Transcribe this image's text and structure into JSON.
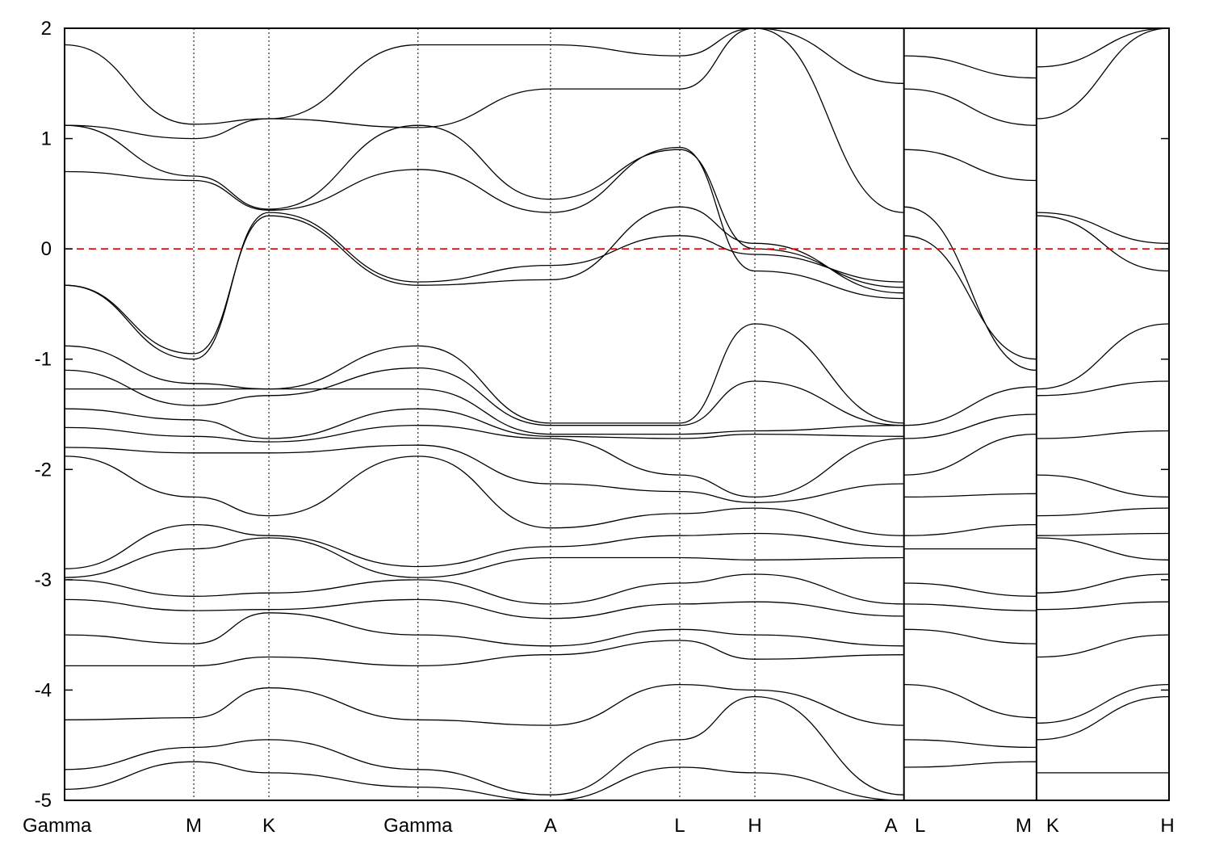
{
  "chart_data": {
    "type": "line",
    "title": "",
    "xlabel": "",
    "ylabel": "",
    "ylim": [
      -5,
      2
    ],
    "yticks": [
      -5,
      -4,
      -3,
      -2,
      -1,
      0,
      1,
      2
    ],
    "fermi_level": 0,
    "fermi_color": "#dd0000",
    "grid": false,
    "legend": "none",
    "xlim": [
      0,
      10
    ],
    "kpoints": [
      {
        "label": "Gamma",
        "x": 0.0
      },
      {
        "label": "M",
        "x": 1.17
      },
      {
        "label": "K",
        "x": 1.85
      },
      {
        "label": "Gamma",
        "x": 3.2
      },
      {
        "label": "A",
        "x": 4.4
      },
      {
        "label": "L",
        "x": 5.57
      },
      {
        "label": "H",
        "x": 6.25
      },
      {
        "label": "A",
        "x": 7.6
      },
      {
        "label": "L",
        "x": 7.6
      },
      {
        "label": "M",
        "x": 8.8
      },
      {
        "label": "K",
        "x": 8.8
      },
      {
        "label": "H",
        "x": 10.0
      }
    ],
    "segment_breaks": [
      7.6,
      8.8
    ],
    "series": [
      {
        "segment": "Gamma-M-K-Gamma-A-L-H-A",
        "x": [
          0,
          1.17,
          1.85,
          3.2,
          4.4,
          5.57,
          6.25,
          7.6
        ],
        "y": [
          -0.33,
          -1.0,
          0.33,
          -0.3,
          -0.15,
          0.12,
          -0.05,
          -0.3
        ]
      },
      {
        "segment": "Gamma-M-K-Gamma-A-L-H-A",
        "x": [
          0,
          1.17,
          1.85,
          3.2,
          4.4,
          5.57,
          6.25,
          7.6
        ],
        "y": [
          -0.33,
          -0.95,
          0.3,
          -0.33,
          -0.28,
          0.38,
          0.05,
          -0.4
        ]
      },
      {
        "segment": "Gamma-M-K-Gamma-A-L-H-A",
        "x": [
          0,
          1.17,
          1.85,
          3.2,
          4.4,
          5.57,
          6.25,
          7.6
        ],
        "y": [
          0.7,
          0.62,
          0.35,
          0.72,
          0.33,
          0.92,
          -0.2,
          -0.45
        ]
      },
      {
        "segment": "Gamma-M-K-Gamma-A-L-H-A",
        "x": [
          0,
          1.17,
          1.85,
          3.2,
          4.4,
          5.57,
          6.25,
          7.6
        ],
        "y": [
          1.12,
          0.66,
          0.36,
          1.12,
          0.45,
          0.9,
          0.0,
          -0.35
        ]
      },
      {
        "segment": "Gamma-M-K-Gamma-A-L-H-A",
        "x": [
          0,
          1.17,
          1.85,
          3.2,
          4.4,
          5.57,
          6.25,
          7.6
        ],
        "y": [
          1.12,
          1.0,
          1.18,
          1.1,
          1.45,
          1.45,
          2.0,
          0.33
        ]
      },
      {
        "segment": "Gamma-M-K-Gamma-A-L-H-A",
        "x": [
          0,
          1.17,
          1.85,
          3.2,
          4.4,
          5.57,
          6.25,
          7.6
        ],
        "y": [
          1.85,
          1.13,
          1.18,
          1.85,
          1.85,
          1.75,
          2.0,
          1.5
        ]
      },
      {
        "segment": "Gamma-M-K-Gamma-A-L-H-A",
        "x": [
          0,
          1.17,
          1.85,
          3.2,
          4.4,
          5.57,
          6.25,
          7.6
        ],
        "y": [
          -0.88,
          -1.22,
          -1.27,
          -0.88,
          -1.58,
          -1.58,
          -0.68,
          -1.58
        ]
      },
      {
        "segment": "Gamma-M-K-Gamma-A-L-H-A",
        "x": [
          0,
          1.17,
          1.85,
          3.2,
          4.4,
          5.57,
          6.25,
          7.6
        ],
        "y": [
          -1.1,
          -1.42,
          -1.33,
          -1.08,
          -1.6,
          -1.6,
          -1.2,
          -1.6
        ]
      },
      {
        "segment": "Gamma-M-K-Gamma-A-L-H-A",
        "x": [
          0,
          1.17,
          1.85,
          3.2,
          4.4,
          5.57,
          6.25,
          7.6
        ],
        "y": [
          -1.27,
          -1.27,
          -1.27,
          -1.27,
          -1.68,
          -1.68,
          -1.65,
          -1.6
        ]
      },
      {
        "segment": "Gamma-M-K-Gamma-A-L-H-A",
        "x": [
          0,
          1.17,
          1.85,
          3.2,
          4.4,
          5.57,
          6.25,
          7.6
        ],
        "y": [
          -1.45,
          -1.55,
          -1.72,
          -1.45,
          -1.7,
          -1.72,
          -1.68,
          -1.7
        ]
      },
      {
        "segment": "Gamma-M-K-Gamma-A-L-H-A",
        "x": [
          0,
          1.17,
          1.85,
          3.2,
          4.4,
          5.57,
          6.25,
          7.6
        ],
        "y": [
          -1.62,
          -1.7,
          -1.75,
          -1.6,
          -1.72,
          -2.05,
          -2.25,
          -1.72
        ]
      },
      {
        "segment": "Gamma-M-K-Gamma-A-L-H-A",
        "x": [
          0,
          1.17,
          1.85,
          3.2,
          4.4,
          5.57,
          6.25,
          7.6
        ],
        "y": [
          -1.8,
          -1.85,
          -1.85,
          -1.78,
          -2.13,
          -2.2,
          -2.3,
          -2.13
        ]
      },
      {
        "segment": "Gamma-M-K-Gamma-A-L-H-A",
        "x": [
          0,
          1.17,
          1.85,
          3.2,
          4.4,
          5.57,
          6.25,
          7.6
        ],
        "y": [
          -1.88,
          -2.25,
          -2.42,
          -1.88,
          -2.53,
          -2.4,
          -2.35,
          -2.6
        ]
      },
      {
        "segment": "Gamma-M-K-Gamma-A-L-H-A",
        "x": [
          0,
          1.17,
          1.85,
          3.2,
          4.4,
          5.57,
          6.25,
          7.6
        ],
        "y": [
          -2.9,
          -2.5,
          -2.6,
          -2.88,
          -2.7,
          -2.6,
          -2.58,
          -2.7
        ]
      },
      {
        "segment": "Gamma-M-K-Gamma-A-L-H-A",
        "x": [
          0,
          1.17,
          1.85,
          3.2,
          4.4,
          5.57,
          6.25,
          7.6
        ],
        "y": [
          -2.98,
          -2.72,
          -2.62,
          -2.98,
          -2.8,
          -2.8,
          -2.82,
          -2.8
        ]
      },
      {
        "segment": "Gamma-M-K-Gamma-A-L-H-A",
        "x": [
          0,
          1.17,
          1.85,
          3.2,
          4.4,
          5.57,
          6.25,
          7.6
        ],
        "y": [
          -3.0,
          -3.15,
          -3.12,
          -3.0,
          -3.22,
          -3.03,
          -2.95,
          -3.22
        ]
      },
      {
        "segment": "Gamma-M-K-Gamma-A-L-H-A",
        "x": [
          0,
          1.17,
          1.85,
          3.2,
          4.4,
          5.57,
          6.25,
          7.6
        ],
        "y": [
          -3.18,
          -3.28,
          -3.27,
          -3.18,
          -3.35,
          -3.22,
          -3.2,
          -3.33
        ]
      },
      {
        "segment": "Gamma-M-K-Gamma-A-L-H-A",
        "x": [
          0,
          1.17,
          1.85,
          3.2,
          4.4,
          5.57,
          6.25,
          7.6
        ],
        "y": [
          -3.5,
          -3.58,
          -3.3,
          -3.5,
          -3.6,
          -3.45,
          -3.5,
          -3.6
        ]
      },
      {
        "segment": "Gamma-M-K-Gamma-A-L-H-A",
        "x": [
          0,
          1.17,
          1.85,
          3.2,
          4.4,
          5.57,
          6.25,
          7.6
        ],
        "y": [
          -3.78,
          -3.78,
          -3.7,
          -3.78,
          -3.68,
          -3.55,
          -3.72,
          -3.68
        ]
      },
      {
        "segment": "Gamma-M-K-Gamma-A-L-H-A",
        "x": [
          0,
          1.17,
          1.85,
          3.2,
          4.4,
          5.57,
          6.25,
          7.6
        ],
        "y": [
          -4.27,
          -4.25,
          -3.98,
          -4.27,
          -4.32,
          -3.95,
          -4.0,
          -4.32
        ]
      },
      {
        "segment": "Gamma-M-K-Gamma-A-L-H-A",
        "x": [
          0,
          1.17,
          1.85,
          3.2,
          4.4,
          5.57,
          6.25,
          7.6
        ],
        "y": [
          -4.72,
          -4.52,
          -4.45,
          -4.72,
          -4.95,
          -4.45,
          -4.06,
          -4.95
        ]
      },
      {
        "segment": "Gamma-M-K-Gamma-A-L-H-A",
        "x": [
          0,
          1.17,
          1.85,
          3.2,
          4.4,
          5.57,
          6.25,
          7.6
        ],
        "y": [
          -4.9,
          -4.65,
          -4.75,
          -4.88,
          -5.0,
          -4.7,
          -4.75,
          -5.0
        ]
      },
      {
        "segment": "L-M",
        "x": [
          7.6,
          8.8
        ],
        "y": [
          0.12,
          -1.0
        ]
      },
      {
        "segment": "L-M",
        "x": [
          7.6,
          8.8
        ],
        "y": [
          0.38,
          -1.1
        ]
      },
      {
        "segment": "L-M",
        "x": [
          7.6,
          8.8
        ],
        "y": [
          0.9,
          0.62
        ]
      },
      {
        "segment": "L-M",
        "x": [
          7.6,
          8.8
        ],
        "y": [
          1.45,
          1.12
        ]
      },
      {
        "segment": "L-M",
        "x": [
          7.6,
          8.8
        ],
        "y": [
          1.75,
          1.55
        ]
      },
      {
        "segment": "L-M",
        "x": [
          7.6,
          8.8
        ],
        "y": [
          -1.6,
          -1.25
        ]
      },
      {
        "segment": "L-M",
        "x": [
          7.6,
          8.8
        ],
        "y": [
          -1.72,
          -1.5
        ]
      },
      {
        "segment": "L-M",
        "x": [
          7.6,
          8.8
        ],
        "y": [
          -2.05,
          -1.68
        ]
      },
      {
        "segment": "L-M",
        "x": [
          7.6,
          8.8
        ],
        "y": [
          -2.25,
          -2.22
        ]
      },
      {
        "segment": "L-M",
        "x": [
          7.6,
          8.8
        ],
        "y": [
          -2.6,
          -2.5
        ]
      },
      {
        "segment": "L-M",
        "x": [
          7.6,
          8.8
        ],
        "y": [
          -2.72,
          -2.72
        ]
      },
      {
        "segment": "L-M",
        "x": [
          7.6,
          8.8
        ],
        "y": [
          -3.03,
          -3.15
        ]
      },
      {
        "segment": "L-M",
        "x": [
          7.6,
          8.8
        ],
        "y": [
          -3.22,
          -3.28
        ]
      },
      {
        "segment": "L-M",
        "x": [
          7.6,
          8.8
        ],
        "y": [
          -3.45,
          -3.58
        ]
      },
      {
        "segment": "L-M",
        "x": [
          7.6,
          8.8
        ],
        "y": [
          -3.95,
          -4.25
        ]
      },
      {
        "segment": "L-M",
        "x": [
          7.6,
          8.8
        ],
        "y": [
          -4.45,
          -4.52
        ]
      },
      {
        "segment": "L-M",
        "x": [
          7.6,
          8.8
        ],
        "y": [
          -4.7,
          -4.65
        ]
      },
      {
        "segment": "K-H",
        "x": [
          8.8,
          10.0
        ],
        "y": [
          0.33,
          0.05
        ]
      },
      {
        "segment": "K-H",
        "x": [
          8.8,
          10.0
        ],
        "y": [
          0.3,
          -0.2
        ]
      },
      {
        "segment": "K-H",
        "x": [
          8.8,
          10.0
        ],
        "y": [
          1.18,
          2.0
        ]
      },
      {
        "segment": "K-H",
        "x": [
          8.8,
          10.0
        ],
        "y": [
          1.65,
          2.0
        ]
      },
      {
        "segment": "K-H",
        "x": [
          8.8,
          10.0
        ],
        "y": [
          -1.27,
          -0.68
        ]
      },
      {
        "segment": "K-H",
        "x": [
          8.8,
          10.0
        ],
        "y": [
          -1.33,
          -1.2
        ]
      },
      {
        "segment": "K-H",
        "x": [
          8.8,
          10.0
        ],
        "y": [
          -1.72,
          -1.65
        ]
      },
      {
        "segment": "K-H",
        "x": [
          8.8,
          10.0
        ],
        "y": [
          -2.05,
          -2.25
        ]
      },
      {
        "segment": "K-H",
        "x": [
          8.8,
          10.0
        ],
        "y": [
          -2.42,
          -2.35
        ]
      },
      {
        "segment": "K-H",
        "x": [
          8.8,
          10.0
        ],
        "y": [
          -2.6,
          -2.58
        ]
      },
      {
        "segment": "K-H",
        "x": [
          8.8,
          10.0
        ],
        "y": [
          -2.62,
          -2.82
        ]
      },
      {
        "segment": "K-H",
        "x": [
          8.8,
          10.0
        ],
        "y": [
          -3.12,
          -2.95
        ]
      },
      {
        "segment": "K-H",
        "x": [
          8.8,
          10.0
        ],
        "y": [
          -3.27,
          -3.2
        ]
      },
      {
        "segment": "K-H",
        "x": [
          8.8,
          10.0
        ],
        "y": [
          -3.7,
          -3.5
        ]
      },
      {
        "segment": "K-H",
        "x": [
          8.8,
          10.0
        ],
        "y": [
          -4.3,
          -3.95
        ]
      },
      {
        "segment": "K-H",
        "x": [
          8.8,
          10.0
        ],
        "y": [
          -4.45,
          -4.06
        ]
      },
      {
        "segment": "K-H",
        "x": [
          8.8,
          10.0
        ],
        "y": [
          -4.75,
          -4.75
        ]
      }
    ]
  }
}
